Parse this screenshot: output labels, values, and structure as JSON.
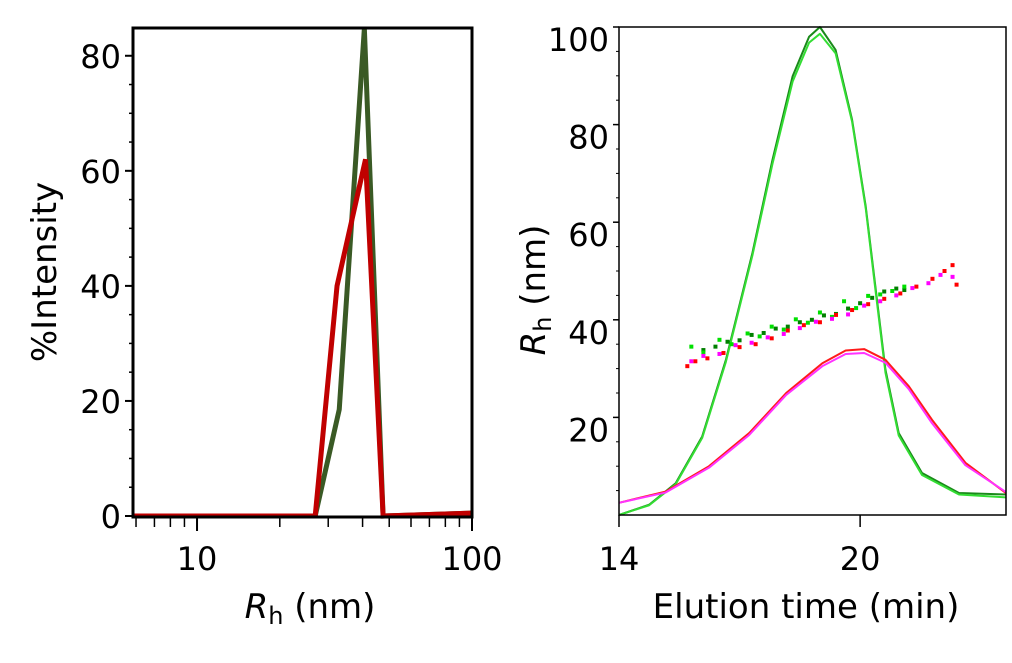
{
  "chart_data": [
    {
      "type": "line",
      "xlabel": "R",
      "xlabel_sub": "h",
      "xlabel_unit": " (nm)",
      "ylabel": "%Intensity",
      "xscale": "log",
      "xlim": [
        5.85,
        100
      ],
      "ylim": [
        0,
        85
      ],
      "xticks": [
        10,
        100
      ],
      "xtick_labels": [
        "10",
        "100"
      ],
      "yticks": [
        0,
        20,
        40,
        60,
        80
      ],
      "ytick_labels": [
        "0",
        "20",
        "40",
        "60",
        "80"
      ],
      "grid": false,
      "series": [
        {
          "color": "#3a5a25",
          "x": [
            5.85,
            26.9,
            32.9,
            40.6,
            47.5,
            100
          ],
          "y": [
            0,
            0,
            18.5,
            84.7,
            0,
            0.5
          ]
        },
        {
          "color": "#c00000",
          "x": [
            5.85,
            26.9,
            32.3,
            41.0,
            47.5,
            100
          ],
          "y": [
            0,
            0,
            40,
            62,
            0,
            0.5
          ]
        }
      ]
    },
    {
      "type": "line+scatter",
      "xlabel": "Elution time (min)",
      "ylabel": "R",
      "ylabel_sub": "h",
      "ylabel_unit": " (nm)",
      "xlim": [
        14,
        23.63
      ],
      "ylim": [
        0,
        100
      ],
      "xticks": [
        14,
        20
      ],
      "xtick_labels": [
        "14",
        "20"
      ],
      "yticks": [
        20,
        40,
        60,
        80,
        100
      ],
      "ytick_labels": [
        "20",
        "40",
        "60",
        "80",
        "100"
      ],
      "grid": false,
      "lines": [
        {
          "color": "#1a8a1a",
          "x": [
            14.0,
            14.75,
            15.41,
            16.07,
            16.66,
            17.32,
            17.82,
            18.32,
            18.73,
            19.0,
            19.39,
            19.8,
            20.14,
            20.38,
            20.63,
            20.96,
            21.54,
            22.46,
            23.63
          ],
          "y": [
            0,
            2.1,
            6.5,
            16.1,
            31.8,
            53.7,
            72.8,
            89.9,
            98,
            100,
            95.3,
            81,
            63.2,
            46.8,
            29.8,
            16.8,
            8.6,
            4.5,
            4.2
          ]
        },
        {
          "color": "#33dd33",
          "x": [
            14.0,
            14.75,
            15.41,
            16.07,
            16.66,
            17.32,
            17.82,
            18.32,
            18.73,
            19.0,
            19.39,
            19.8,
            20.14,
            20.38,
            20.63,
            20.96,
            21.54,
            22.46,
            23.63
          ],
          "y": [
            0,
            2.0,
            6.3,
            15.8,
            31.4,
            53.2,
            72.0,
            88.8,
            96.8,
            98.6,
            94.6,
            80.6,
            62.8,
            46.2,
            29.2,
            16.3,
            8.2,
            4.2,
            3.6
          ]
        },
        {
          "color": "#ff1a1a",
          "x": [
            14.0,
            15.16,
            16.24,
            17.24,
            18.16,
            19.06,
            19.64,
            20.1,
            20.63,
            21.21,
            21.79,
            22.62,
            23.63
          ],
          "y": [
            2.5,
            4.8,
            10,
            16.8,
            25,
            31.1,
            33.7,
            34,
            31.8,
            26.4,
            19.5,
            10.7,
            4.5
          ]
        },
        {
          "color": "#ff33ff",
          "x": [
            14.0,
            15.16,
            16.24,
            17.24,
            18.16,
            19.06,
            19.64,
            20.1,
            20.63,
            21.21,
            21.79,
            22.62,
            23.63
          ],
          "y": [
            2.5,
            4.6,
            9.7,
            16.4,
            24.6,
            30.5,
            33.0,
            33.2,
            31.2,
            25.8,
            18.8,
            10.2,
            4.7
          ]
        }
      ],
      "scatter": [
        {
          "color": "#008000",
          "points": [
            [
              16.1,
              33.8
            ],
            [
              16.4,
              34.5
            ],
            [
              16.7,
              35.5
            ],
            [
              17.0,
              35.8
            ],
            [
              17.3,
              36.9
            ],
            [
              17.6,
              37.3
            ],
            [
              17.9,
              38.2
            ],
            [
              18.2,
              38.6
            ],
            [
              18.5,
              39.5
            ],
            [
              18.8,
              40.0
            ],
            [
              19.1,
              40.9
            ],
            [
              19.4,
              41.2
            ],
            [
              19.7,
              42.3
            ],
            [
              20.0,
              43.4
            ],
            [
              20.3,
              44.5
            ],
            [
              20.6,
              45.8
            ],
            [
              20.9,
              46.4
            ],
            [
              21.1,
              46.1
            ]
          ]
        },
        {
          "color": "#00e000",
          "points": [
            [
              15.8,
              34.5
            ],
            [
              16.1,
              33.3
            ],
            [
              16.5,
              35.9
            ],
            [
              16.8,
              35.0
            ],
            [
              17.2,
              37.2
            ],
            [
              17.5,
              36.6
            ],
            [
              17.8,
              38.6
            ],
            [
              18.1,
              38.0
            ],
            [
              18.4,
              40.1
            ],
            [
              18.7,
              39.4
            ],
            [
              19.0,
              41.5
            ],
            [
              19.3,
              40.6
            ],
            [
              19.6,
              43.8
            ],
            [
              19.9,
              42.4
            ],
            [
              20.2,
              44.9
            ],
            [
              20.5,
              45.2
            ],
            [
              20.8,
              45.9
            ],
            [
              21.1,
              46.8
            ]
          ]
        },
        {
          "color": "#ff0000",
          "points": [
            [
              15.7,
              30.5
            ],
            [
              15.9,
              31.5
            ],
            [
              16.2,
              32.1
            ],
            [
              16.6,
              33.2
            ],
            [
              17.0,
              34.4
            ],
            [
              17.4,
              35.0
            ],
            [
              17.8,
              36.2
            ],
            [
              18.2,
              37.8
            ],
            [
              18.6,
              38.9
            ],
            [
              19.0,
              39.5
            ],
            [
              19.4,
              41.0
            ],
            [
              19.8,
              42.0
            ],
            [
              20.2,
              43.2
            ],
            [
              20.6,
              44.3
            ],
            [
              21.0,
              45.4
            ],
            [
              21.4,
              46.8
            ],
            [
              21.8,
              48.4
            ],
            [
              22.1,
              50.0
            ],
            [
              22.3,
              51.2
            ],
            [
              22.4,
              47.2
            ]
          ]
        },
        {
          "color": "#ff00ff",
          "points": [
            [
              15.8,
              31.5
            ],
            [
              16.1,
              32.6
            ],
            [
              16.5,
              33.0
            ],
            [
              16.9,
              34.8
            ],
            [
              17.3,
              35.3
            ],
            [
              17.7,
              36.4
            ],
            [
              18.1,
              37.1
            ],
            [
              18.5,
              38.3
            ],
            [
              18.9,
              39.6
            ],
            [
              19.3,
              40.2
            ],
            [
              19.7,
              41.1
            ],
            [
              20.1,
              42.9
            ],
            [
              20.5,
              43.8
            ],
            [
              20.9,
              45.0
            ],
            [
              21.3,
              46.5
            ],
            [
              21.7,
              47.5
            ],
            [
              22.0,
              49.2
            ],
            [
              22.3,
              48.8
            ]
          ]
        }
      ]
    }
  ]
}
